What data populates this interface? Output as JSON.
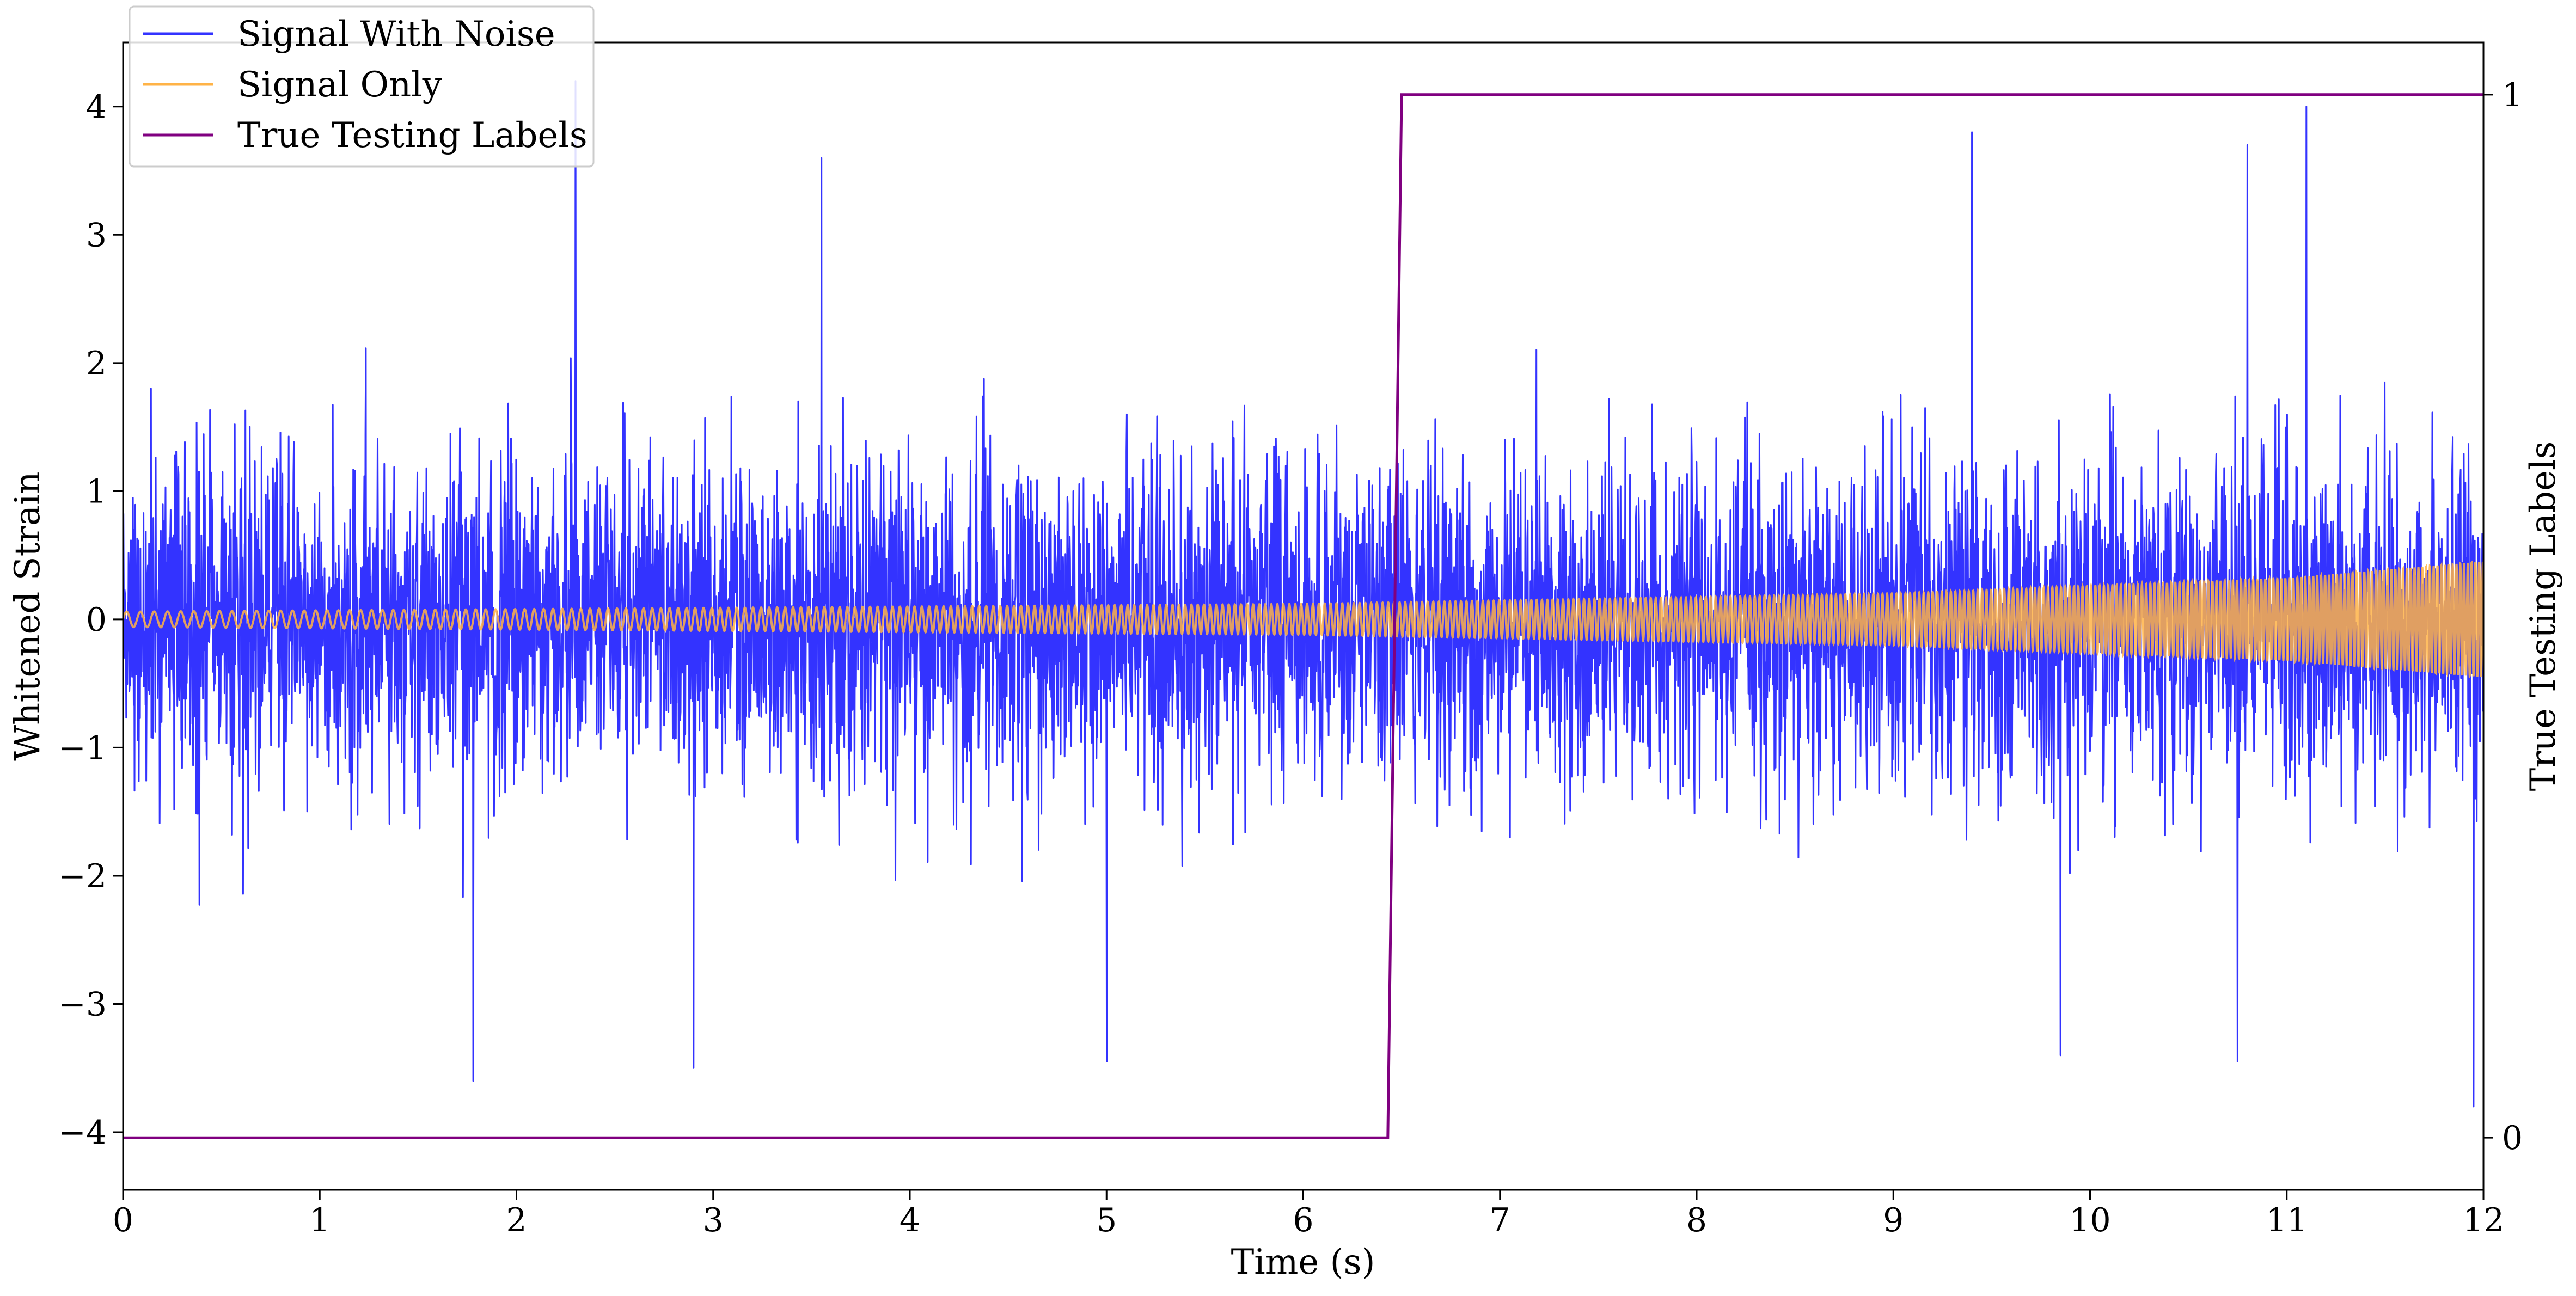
{
  "chart_data": {
    "type": "line",
    "title": "",
    "xlabel": "Time (s)",
    "ylabel": "Whitened Strain",
    "y2label": "True Testing Labels",
    "xlim": [
      0,
      12
    ],
    "ylim": [
      -4.45,
      4.5
    ],
    "y2lim": [
      -0.05,
      1.05
    ],
    "xticks": [
      0,
      1,
      2,
      3,
      4,
      5,
      6,
      7,
      8,
      9,
      10,
      11,
      12
    ],
    "xtick_labels": [
      "0",
      "1",
      "2",
      "3",
      "4",
      "5",
      "6",
      "7",
      "8",
      "9",
      "10",
      "11",
      "12"
    ],
    "yticks": [
      -4,
      -3,
      -2,
      -1,
      0,
      1,
      2,
      3,
      4
    ],
    "ytick_labels": [
      "−4",
      "−3",
      "−2",
      "−1",
      "0",
      "1",
      "2",
      "3",
      "4"
    ],
    "y2ticks": [
      0,
      1
    ],
    "y2tick_labels": [
      "0",
      "1"
    ],
    "grid": false,
    "legend": {
      "position": "top-left",
      "entries": [
        "Signal With Noise",
        "Signal Only",
        "True Testing Labels"
      ]
    },
    "series": [
      {
        "name": "Signal With Noise",
        "color": "#3333ff",
        "axis": "left",
        "description_values": {
          "x_range": [
            0,
            12
          ],
          "noise_envelope_typical": [
            -1.7,
            1.7
          ],
          "peaks": [
            {
              "x": 2.3,
              "y": 4.2
            },
            {
              "x": 11.1,
              "y": 4.0
            },
            {
              "x": 9.4,
              "y": 3.8
            },
            {
              "x": 10.8,
              "y": 3.7
            },
            {
              "x": 3.55,
              "y": 3.6
            },
            {
              "x": 1.78,
              "y": -3.6
            },
            {
              "x": 11.95,
              "y": -3.8
            },
            {
              "x": 5.0,
              "y": -3.45
            },
            {
              "x": 2.9,
              "y": -3.5
            },
            {
              "x": 10.75,
              "y": -3.45
            },
            {
              "x": 9.85,
              "y": -3.4
            }
          ]
        }
      },
      {
        "name": "Signal Only",
        "color": "#ffb347",
        "axis": "left",
        "amplitude_points": [
          {
            "x": 0,
            "amp": 0.06
          },
          {
            "x": 6,
            "amp": 0.12
          },
          {
            "x": 9,
            "amp": 0.2
          },
          {
            "x": 11,
            "amp": 0.32
          },
          {
            "x": 12,
            "amp": 0.45
          }
        ]
      },
      {
        "name": "True Testing Labels",
        "color": "#800080",
        "axis": "right",
        "points": [
          {
            "x": 0.0,
            "y": 0
          },
          {
            "x": 6.43,
            "y": 0
          },
          {
            "x": 6.5,
            "y": 1
          },
          {
            "x": 12.0,
            "y": 1
          }
        ]
      }
    ]
  }
}
